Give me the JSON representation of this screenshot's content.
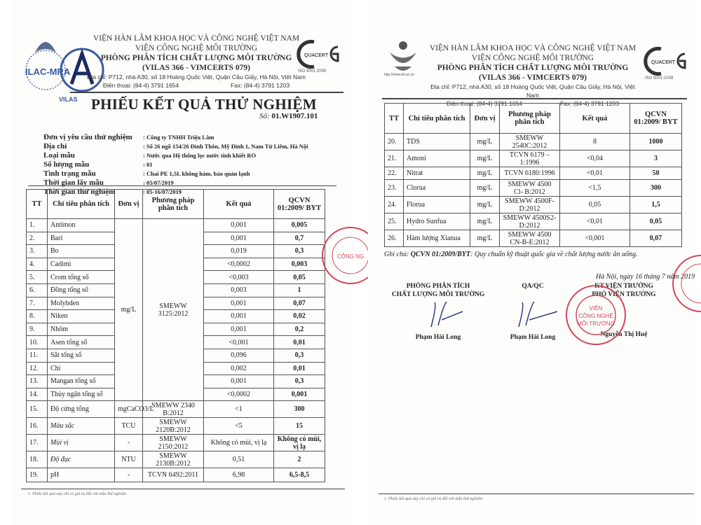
{
  "header": {
    "line1": "VIỆN HÀN LÂM KHOA HỌC VÀ CÔNG NGHỆ VIỆT NAM",
    "line2": "VIỆN CÔNG NGHỆ MÔI TRƯỜNG",
    "line3": "PHÒNG PHÂN TÍCH CHẤT LƯỢNG MÔI TRƯỜNG",
    "line4": "(VILAS 366 - VIMCERTS 079)",
    "address": "Địa chỉ: P712, nhà A30, số 18 Hoàng Quốc Việt, Quận Cầu Giấy, Hà Nội, Việt Nam",
    "phone": "Điện thoại: (84-4) 3791 1654",
    "fax": "Fax: (84-4) 3791 1203",
    "logos": [
      "ILAC-MRA",
      "VILAS",
      "QUACERT",
      "IAS-ANZ",
      "ISO 9001:2008",
      "http://www.iet.ac.vn"
    ]
  },
  "report": {
    "title": "PHIẾU KẾT QUẢ THỬ NGHIỆM",
    "number_label": "Số:",
    "number": "01.W1907.101"
  },
  "info": [
    {
      "label": "Đơn vị yêu cầu thử nghiệm",
      "value": ": Công ty TNHH Triệu Lâm"
    },
    {
      "label": "Địa chỉ",
      "value": ": Số 26 ngõ 154/26 Đình Thôn, Mỹ Đình 1, Nam Từ Liêm, Hà Nội"
    },
    {
      "label": "Loại mẫu",
      "value": ": Nước qua Hệ thống lọc nước tinh khiết RO"
    },
    {
      "label": "Số lượng mẫu",
      "value": ": 01"
    },
    {
      "label": "Tình trạng mẫu",
      "value": ": Chai PE 1,5L không hàm, bảo quản lạnh"
    },
    {
      "label": "Thời gian lấy mẫu",
      "value": ": 05/07/2019"
    },
    {
      "label": "Thời gian thử nghiệm",
      "value": ": 05-16/07/2019"
    }
  ],
  "table": {
    "headers": [
      "TT",
      "Chỉ tiêu phân tích",
      "Đơn vị",
      "Phương pháp phân tích",
      "Kết quả",
      "QCVN 01:2009/ BYT"
    ],
    "group_unit": "mg/L",
    "group_method": "SMEWW 3125:2012",
    "rows_left": [
      {
        "tt": "1.",
        "name": "Antimon",
        "result": "0,001",
        "limit": "0,005"
      },
      {
        "tt": "2.",
        "name": "Bari",
        "result": "0,001",
        "limit": "0,7"
      },
      {
        "tt": "3.",
        "name": "Bo",
        "result": "0,019",
        "limit": "0,3"
      },
      {
        "tt": "4.",
        "name": "Cadimi",
        "result": "<0,0002",
        "limit": "0,003"
      },
      {
        "tt": "5.",
        "name": "Crom tổng số",
        "result": "<0,003",
        "limit": "0,05"
      },
      {
        "tt": "6.",
        "name": "Đồng tổng số",
        "result": "0,003",
        "limit": "1"
      },
      {
        "tt": "7.",
        "name": "Molybden",
        "result": "0,001",
        "limit": "0,07"
      },
      {
        "tt": "8.",
        "name": "Niken",
        "result": "0,001",
        "limit": "0,02"
      },
      {
        "tt": "9.",
        "name": "Nhôm",
        "result": "0,001",
        "limit": "0,2"
      },
      {
        "tt": "10.",
        "name": "Asen tổng số",
        "result": "<0,001",
        "limit": "0,01"
      },
      {
        "tt": "11.",
        "name": "Sắt tổng số",
        "result": "0,096",
        "limit": "0,3"
      },
      {
        "tt": "12.",
        "name": "Chì",
        "result": "0,002",
        "limit": "0,01"
      },
      {
        "tt": "13.",
        "name": "Mangan tổng số",
        "result": "0,001",
        "limit": "0,3"
      },
      {
        "tt": "14.",
        "name": "Thủy ngân tổng số",
        "result": "<0,0002",
        "limit": "0,001"
      },
      {
        "tt": "15.",
        "name": "Độ cứng tổng",
        "unit": "mgCaCO3/L",
        "method": "SMEWW 2340 B:2012",
        "result": "<1",
        "limit": "300"
      },
      {
        "tt": "16.",
        "name": "Màu sắc",
        "italic": true,
        "unit": "TCU",
        "method": "SMEWW 2120B:2012",
        "result": "<5",
        "limit": "15"
      },
      {
        "tt": "17.",
        "name": "Mùi vị",
        "italic": true,
        "unit": "-",
        "method": "SMEWW 2150:2012",
        "result": "Không có mùi, vị lạ",
        "limit": "Không có mùi, vị lạ"
      },
      {
        "tt": "18.",
        "name": "Độ đục",
        "italic": true,
        "unit": "NTU",
        "method": "SMEWW 2130B:2012",
        "result": "0,51",
        "limit": "2"
      },
      {
        "tt": "19.",
        "name": "pH",
        "unit": "-",
        "method": "TCVN 6492:2011",
        "result": "6,98",
        "limit": "6,5-8,5"
      }
    ],
    "rows_right": [
      {
        "tt": "20.",
        "name": "TDS",
        "unit": "mg/L",
        "method": "SMEWW 2540C:2012",
        "result": "8",
        "limit": "1000"
      },
      {
        "tt": "21.",
        "name": "Amoni",
        "unit": "mg/L",
        "method": "TCVN 6179 – 1:1996",
        "result": "<0,04",
        "limit": "3"
      },
      {
        "tt": "22.",
        "name": "Nitrat",
        "unit": "mg/L",
        "method": "TCVN 6180:1996",
        "result": "<0,01",
        "limit": "50"
      },
      {
        "tt": "23.",
        "name": "Clorua",
        "unit": "mg/L",
        "method": "SMEWW 4500 Cl- B:2012",
        "result": "<1,5",
        "limit": "300"
      },
      {
        "tt": "24.",
        "name": "Florua",
        "unit": "mg/L",
        "method": "SMEWW 4500F- D:2012",
        "result": "0,05",
        "limit": "1,5"
      },
      {
        "tt": "25.",
        "name": "Hydro Sunfua",
        "unit": "mg/L",
        "method": "SMEWW 4500S2- D:2012",
        "result": "<0,01",
        "limit": "0,05"
      },
      {
        "tt": "26.",
        "name": "Hàm lượng Xianua",
        "unit": "mg/L",
        "method": "SMEWW 4500 CN-B-E:2012",
        "result": "<0,001",
        "limit": "0,07"
      }
    ]
  },
  "note": {
    "label": "Ghi chú:",
    "code": "QCVN 01:2009/BYT",
    "text": ": Quy chuẩn kỹ thuật quốc gia về chất lượng nước ăn uống."
  },
  "signing": {
    "date": "Hà Nội, ngày 16 tháng 7 năm 2019",
    "blocks": [
      {
        "title": "PHÒNG PHÂN TÍCH\nCHẤT LƯỢNG MÔI TRƯỜNG",
        "name": "Phạm Hải Long"
      },
      {
        "title": "QA/QC",
        "name": "Phạm Hải Long"
      },
      {
        "title": "KT.VIỆN TRƯỞNG\nPHÓ VIỆN TRƯỞNG",
        "name": "Nguyễn Thị Huệ"
      }
    ]
  },
  "stamp_text": "VIỆN CÔNG NGHỆ MÔI TRƯỜNG",
  "footnote": "1. Phiếu kết quả này chỉ có giá trị đối với mẫu thử nghiệm",
  "colors": {
    "stamp": "#d0485a",
    "text": "#222222",
    "rule": "#444444"
  }
}
